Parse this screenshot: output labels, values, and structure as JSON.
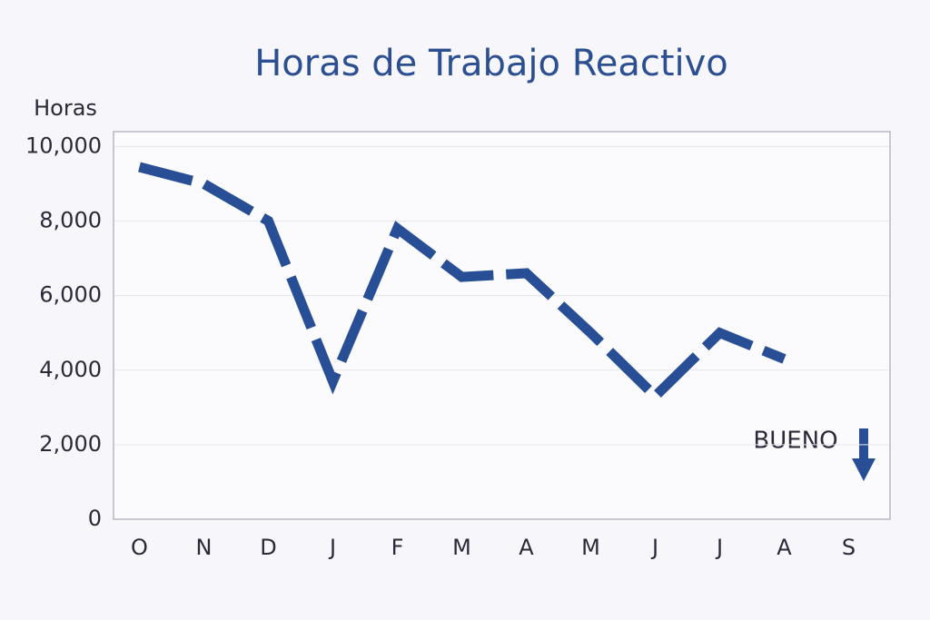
{
  "chart_data": {
    "type": "line",
    "title": "Horas de Trabajo Reactivo",
    "y_label": "Horas",
    "categories": [
      "O",
      "N",
      "D",
      "J",
      "F",
      "M",
      "A",
      "M",
      "J",
      "J",
      "A",
      "S"
    ],
    "values": [
      9450,
      9000,
      8000,
      3700,
      7800,
      6500,
      6600,
      5000,
      3300,
      5000,
      4300,
      null
    ],
    "color": "#284f96",
    "ylim": [
      0,
      10400
    ],
    "yticks": [
      0,
      {
        "value": 2000,
        "label": "2,000"
      },
      {
        "value": 4000,
        "label": "4,000"
      },
      {
        "value": 6000,
        "label": "6,000"
      },
      {
        "value": 8000,
        "label": "8,000"
      },
      {
        "value": 10000,
        "label": "10,000"
      }
    ],
    "grid": true,
    "annotation": "BUENO"
  }
}
